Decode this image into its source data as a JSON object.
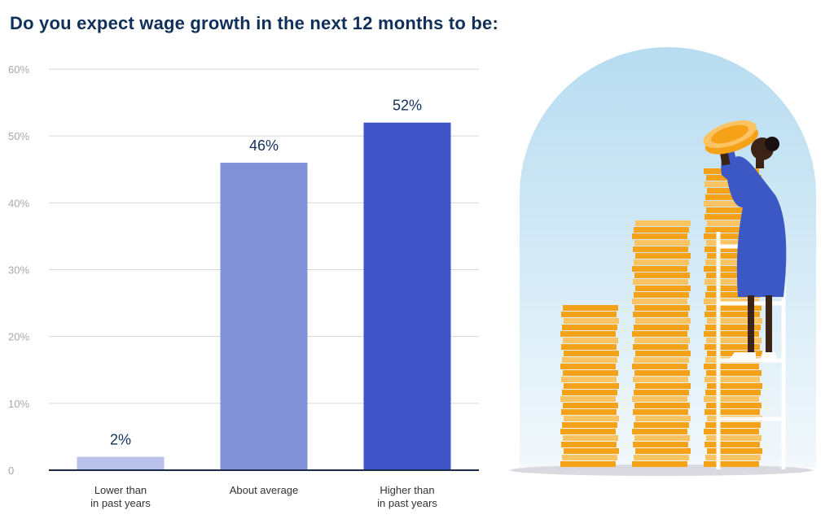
{
  "title": "Do you expect wage growth in the next 12 months to be:",
  "colors": {
    "title": "#10305a",
    "axis": "#1b2a4a",
    "grid": "#d6d6d6",
    "tick": "#a8a8a8",
    "label": "#333333",
    "value_label": "#10305a",
    "bar_low": "#b9c1ea",
    "bar_mid": "#8391d9",
    "bar_high": "#3f54c6",
    "arch_top": "#b7dcf0",
    "arch_bottom": "#f2f8fc",
    "coin": "#f6a218",
    "coin_light": "#fbc362",
    "person_dress": "#3c58c4",
    "person_skin": "#3b2316"
  },
  "chart_data": {
    "type": "bar",
    "title": "Do you expect wage growth in the next 12 months to be:",
    "categories": [
      [
        "Lower than",
        "in past years"
      ],
      [
        "About average"
      ],
      [
        "Higher than",
        "in past years"
      ]
    ],
    "values": [
      2,
      46,
      52
    ],
    "value_labels": [
      "2%",
      "46%",
      "52%"
    ],
    "bar_colors": [
      "#b9c1ea",
      "#8391d9",
      "#3f54c6"
    ],
    "yticks": [
      "0",
      "10%",
      "20%",
      "30%",
      "40%",
      "50%",
      "60%"
    ],
    "ylim": [
      0,
      60
    ],
    "grid": true,
    "xlabel": "",
    "ylabel": ""
  }
}
